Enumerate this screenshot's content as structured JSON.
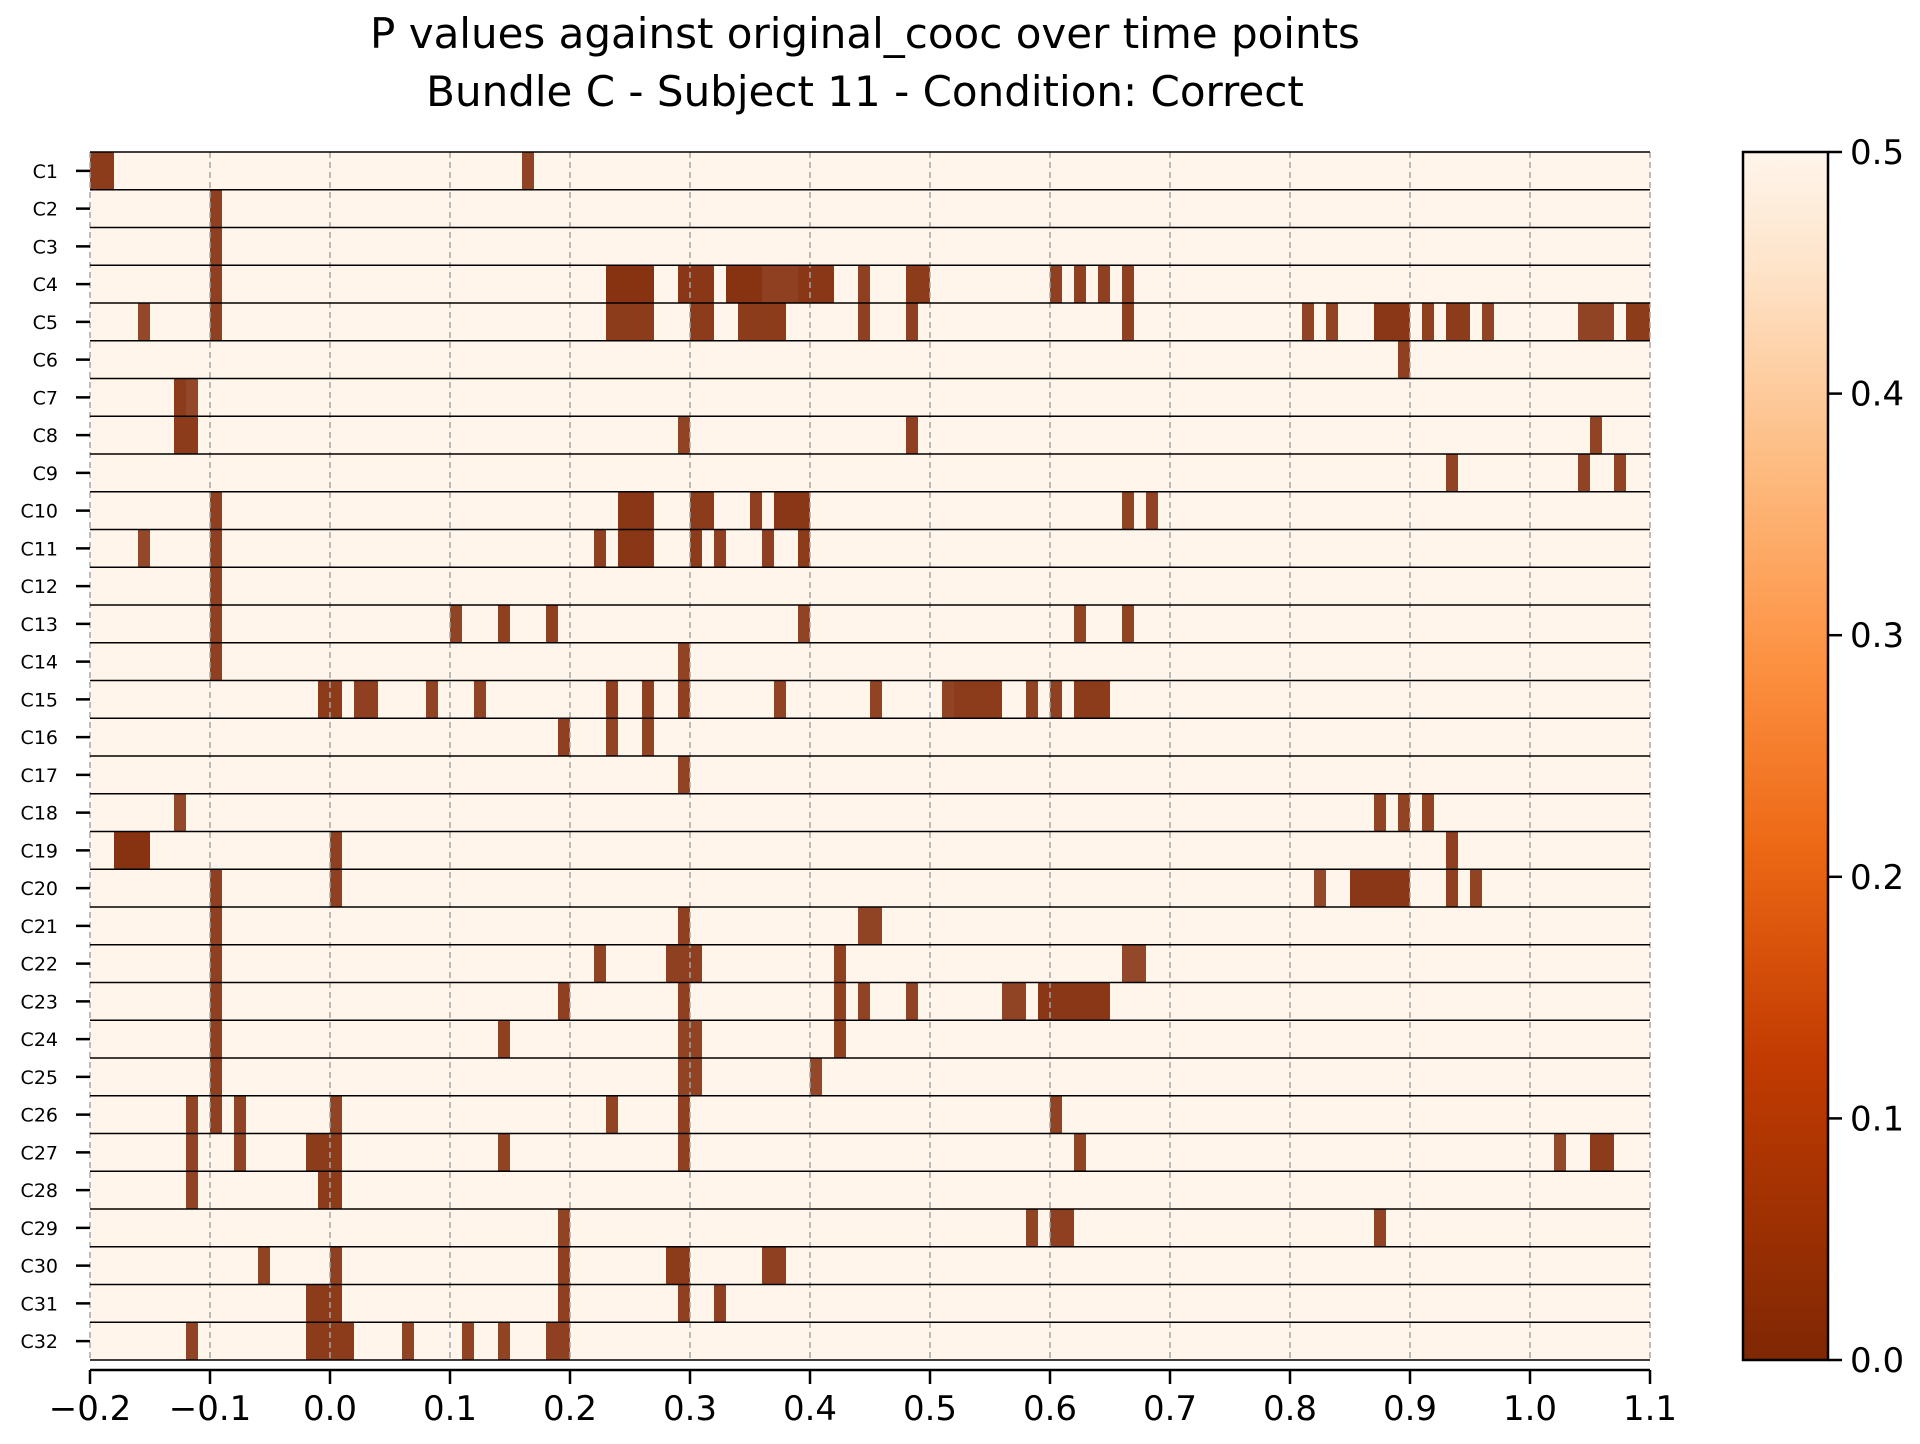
{
  "chart_data": {
    "type": "heatmap",
    "title": "P values against original_cooc over time points",
    "subtitle": "Bundle C - Subject 11 - Condition: Correct",
    "xlabel": "",
    "ylabel": "",
    "xlim": [
      -0.2,
      1.1
    ],
    "x_ticks": [
      -0.2,
      -0.1,
      0.0,
      0.1,
      0.2,
      0.3,
      0.4,
      0.5,
      0.6,
      0.7,
      0.8,
      0.9,
      1.0,
      1.1
    ],
    "x_tick_labels": [
      "−0.2",
      "−0.1",
      "0.0",
      "0.1",
      "0.2",
      "0.3",
      "0.4",
      "0.5",
      "0.6",
      "0.7",
      "0.8",
      "0.9",
      "1.0",
      "1.1"
    ],
    "time_step": 0.01,
    "grid": "vertical dashed",
    "colormap": "Oranges_r",
    "colors": {
      "low": "#7f2704",
      "high": "#fff5eb",
      "grid": "#a6a6a6"
    },
    "colorbar": {
      "range": [
        0.0,
        0.5
      ],
      "ticks": [
        0.0,
        0.1,
        0.2,
        0.3,
        0.4,
        0.5
      ],
      "tick_labels": [
        "0.0",
        "0.1",
        "0.2",
        "0.3",
        "0.4",
        "0.5"
      ]
    },
    "default_value": 0.5,
    "rows": [
      {
        "name": "C1",
        "low_p": [
          [
            -0.2,
            -0.18,
            0.05
          ],
          [
            0.16,
            0.17,
            0.07
          ]
        ]
      },
      {
        "name": "C2",
        "low_p": [
          [
            -0.1,
            -0.09,
            0.06
          ]
        ]
      },
      {
        "name": "C3",
        "low_p": [
          [
            -0.1,
            -0.09,
            0.06
          ]
        ]
      },
      {
        "name": "C4",
        "low_p": [
          [
            -0.1,
            -0.09,
            0.06
          ],
          [
            0.23,
            0.27,
            0.03
          ],
          [
            0.29,
            0.32,
            0.04
          ],
          [
            0.33,
            0.36,
            0.03
          ],
          [
            0.36,
            0.39,
            0.06
          ],
          [
            0.39,
            0.42,
            0.04
          ],
          [
            0.44,
            0.45,
            0.06
          ],
          [
            0.48,
            0.5,
            0.05
          ],
          [
            0.6,
            0.61,
            0.06
          ],
          [
            0.62,
            0.63,
            0.06
          ],
          [
            0.64,
            0.65,
            0.06
          ],
          [
            0.66,
            0.67,
            0.06
          ]
        ]
      },
      {
        "name": "C5",
        "low_p": [
          [
            -0.16,
            -0.15,
            0.08
          ],
          [
            -0.1,
            -0.09,
            0.06
          ],
          [
            0.23,
            0.27,
            0.05
          ],
          [
            0.3,
            0.32,
            0.05
          ],
          [
            0.34,
            0.38,
            0.05
          ],
          [
            0.44,
            0.45,
            0.06
          ],
          [
            0.48,
            0.49,
            0.06
          ],
          [
            0.66,
            0.67,
            0.06
          ],
          [
            0.81,
            0.82,
            0.07
          ],
          [
            0.83,
            0.84,
            0.07
          ],
          [
            0.87,
            0.9,
            0.04
          ],
          [
            0.91,
            0.92,
            0.06
          ],
          [
            0.93,
            0.95,
            0.05
          ],
          [
            0.96,
            0.97,
            0.07
          ],
          [
            1.04,
            1.07,
            0.07
          ],
          [
            1.08,
            1.1,
            0.05
          ]
        ]
      },
      {
        "name": "C6",
        "low_p": [
          [
            0.89,
            0.9,
            0.06
          ]
        ]
      },
      {
        "name": "C7",
        "low_p": [
          [
            -0.13,
            -0.12,
            0.05
          ],
          [
            -0.12,
            -0.11,
            0.08
          ]
        ]
      },
      {
        "name": "C8",
        "low_p": [
          [
            -0.13,
            -0.11,
            0.05
          ],
          [
            0.29,
            0.3,
            0.07
          ],
          [
            0.48,
            0.49,
            0.06
          ],
          [
            1.05,
            1.06,
            0.07
          ]
        ]
      },
      {
        "name": "C9",
        "low_p": [
          [
            0.93,
            0.94,
            0.07
          ],
          [
            1.04,
            1.05,
            0.07
          ],
          [
            1.07,
            1.08,
            0.07
          ]
        ]
      },
      {
        "name": "C10",
        "low_p": [
          [
            -0.1,
            -0.09,
            0.06
          ],
          [
            0.24,
            0.27,
            0.04
          ],
          [
            0.3,
            0.32,
            0.05
          ],
          [
            0.35,
            0.36,
            0.06
          ],
          [
            0.37,
            0.4,
            0.04
          ],
          [
            0.66,
            0.67,
            0.07
          ],
          [
            0.68,
            0.69,
            0.07
          ]
        ]
      },
      {
        "name": "C11",
        "low_p": [
          [
            -0.16,
            -0.15,
            0.08
          ],
          [
            -0.1,
            -0.09,
            0.06
          ],
          [
            0.22,
            0.23,
            0.06
          ],
          [
            0.24,
            0.27,
            0.04
          ],
          [
            0.3,
            0.31,
            0.05
          ],
          [
            0.32,
            0.33,
            0.06
          ],
          [
            0.36,
            0.37,
            0.06
          ],
          [
            0.39,
            0.4,
            0.05
          ]
        ]
      },
      {
        "name": "C12",
        "low_p": [
          [
            -0.1,
            -0.09,
            0.06
          ]
        ]
      },
      {
        "name": "C13",
        "low_p": [
          [
            -0.1,
            -0.09,
            0.06
          ],
          [
            0.1,
            0.11,
            0.07
          ],
          [
            0.14,
            0.15,
            0.06
          ],
          [
            0.18,
            0.19,
            0.06
          ],
          [
            0.39,
            0.4,
            0.07
          ],
          [
            0.62,
            0.63,
            0.07
          ],
          [
            0.66,
            0.67,
            0.07
          ]
        ]
      },
      {
        "name": "C14",
        "low_p": [
          [
            -0.1,
            -0.09,
            0.06
          ],
          [
            0.29,
            0.3,
            0.07
          ]
        ]
      },
      {
        "name": "C15",
        "low_p": [
          [
            -0.01,
            0.01,
            0.05
          ],
          [
            0.02,
            0.04,
            0.06
          ],
          [
            0.08,
            0.09,
            0.07
          ],
          [
            0.12,
            0.13,
            0.07
          ],
          [
            0.23,
            0.24,
            0.06
          ],
          [
            0.26,
            0.27,
            0.06
          ],
          [
            0.29,
            0.3,
            0.06
          ],
          [
            0.37,
            0.38,
            0.07
          ],
          [
            0.45,
            0.46,
            0.07
          ],
          [
            0.51,
            0.52,
            0.07
          ],
          [
            0.52,
            0.56,
            0.05
          ],
          [
            0.58,
            0.59,
            0.07
          ],
          [
            0.6,
            0.61,
            0.06
          ],
          [
            0.62,
            0.65,
            0.05
          ]
        ]
      },
      {
        "name": "C16",
        "low_p": [
          [
            0.19,
            0.2,
            0.06
          ],
          [
            0.23,
            0.24,
            0.07
          ],
          [
            0.26,
            0.27,
            0.07
          ]
        ]
      },
      {
        "name": "C17",
        "low_p": [
          [
            0.29,
            0.3,
            0.07
          ]
        ]
      },
      {
        "name": "C18",
        "low_p": [
          [
            -0.13,
            -0.12,
            0.08
          ],
          [
            0.87,
            0.88,
            0.07
          ],
          [
            0.89,
            0.9,
            0.07
          ],
          [
            0.91,
            0.92,
            0.07
          ]
        ]
      },
      {
        "name": "C19",
        "low_p": [
          [
            -0.18,
            -0.15,
            0.03
          ],
          [
            0.0,
            0.01,
            0.06
          ],
          [
            0.93,
            0.94,
            0.06
          ]
        ]
      },
      {
        "name": "C20",
        "low_p": [
          [
            -0.1,
            -0.09,
            0.06
          ],
          [
            0.0,
            0.01,
            0.06
          ],
          [
            0.82,
            0.83,
            0.08
          ],
          [
            0.85,
            0.9,
            0.04
          ],
          [
            0.93,
            0.94,
            0.06
          ],
          [
            0.95,
            0.96,
            0.07
          ]
        ]
      },
      {
        "name": "C21",
        "low_p": [
          [
            -0.1,
            -0.09,
            0.06
          ],
          [
            0.29,
            0.3,
            0.06
          ],
          [
            0.44,
            0.46,
            0.07
          ]
        ]
      },
      {
        "name": "C22",
        "low_p": [
          [
            -0.1,
            -0.09,
            0.06
          ],
          [
            0.22,
            0.23,
            0.07
          ],
          [
            0.28,
            0.31,
            0.06
          ],
          [
            0.42,
            0.43,
            0.06
          ],
          [
            0.66,
            0.68,
            0.08
          ]
        ]
      },
      {
        "name": "C23",
        "low_p": [
          [
            -0.1,
            -0.09,
            0.06
          ],
          [
            0.19,
            0.2,
            0.06
          ],
          [
            0.29,
            0.3,
            0.06
          ],
          [
            0.42,
            0.43,
            0.06
          ],
          [
            0.44,
            0.45,
            0.07
          ],
          [
            0.48,
            0.49,
            0.07
          ],
          [
            0.56,
            0.58,
            0.07
          ],
          [
            0.59,
            0.65,
            0.04
          ]
        ]
      },
      {
        "name": "C24",
        "low_p": [
          [
            -0.1,
            -0.09,
            0.06
          ],
          [
            0.14,
            0.15,
            0.06
          ],
          [
            0.29,
            0.31,
            0.07
          ],
          [
            0.42,
            0.43,
            0.06
          ]
        ]
      },
      {
        "name": "C25",
        "low_p": [
          [
            -0.1,
            -0.09,
            0.06
          ],
          [
            0.29,
            0.31,
            0.07
          ],
          [
            0.4,
            0.41,
            0.08
          ]
        ]
      },
      {
        "name": "C26",
        "low_p": [
          [
            -0.12,
            -0.11,
            0.07
          ],
          [
            -0.1,
            -0.09,
            0.06
          ],
          [
            -0.08,
            -0.07,
            0.07
          ],
          [
            0.0,
            0.01,
            0.07
          ],
          [
            0.23,
            0.24,
            0.07
          ],
          [
            0.29,
            0.3,
            0.06
          ],
          [
            0.6,
            0.61,
            0.07
          ]
        ]
      },
      {
        "name": "C27",
        "low_p": [
          [
            -0.12,
            -0.11,
            0.07
          ],
          [
            -0.08,
            -0.07,
            0.07
          ],
          [
            -0.02,
            0.01,
            0.05
          ],
          [
            0.14,
            0.15,
            0.07
          ],
          [
            0.29,
            0.3,
            0.06
          ],
          [
            0.62,
            0.63,
            0.07
          ],
          [
            1.02,
            1.03,
            0.08
          ],
          [
            1.05,
            1.07,
            0.05
          ]
        ]
      },
      {
        "name": "C28",
        "low_p": [
          [
            -0.12,
            -0.11,
            0.07
          ],
          [
            -0.01,
            0.01,
            0.05
          ]
        ]
      },
      {
        "name": "C29",
        "low_p": [
          [
            0.19,
            0.2,
            0.07
          ],
          [
            0.58,
            0.59,
            0.07
          ],
          [
            0.6,
            0.62,
            0.06
          ],
          [
            0.87,
            0.88,
            0.07
          ]
        ]
      },
      {
        "name": "C30",
        "low_p": [
          [
            -0.06,
            -0.05,
            0.07
          ],
          [
            0.0,
            0.01,
            0.06
          ],
          [
            0.19,
            0.2,
            0.06
          ],
          [
            0.28,
            0.3,
            0.05
          ],
          [
            0.36,
            0.38,
            0.06
          ]
        ]
      },
      {
        "name": "C31",
        "low_p": [
          [
            -0.02,
            0.01,
            0.05
          ],
          [
            0.19,
            0.2,
            0.06
          ],
          [
            0.29,
            0.3,
            0.06
          ],
          [
            0.32,
            0.33,
            0.06
          ]
        ]
      },
      {
        "name": "C32",
        "low_p": [
          [
            -0.12,
            -0.11,
            0.07
          ],
          [
            -0.02,
            0.02,
            0.05
          ],
          [
            0.06,
            0.07,
            0.07
          ],
          [
            0.11,
            0.12,
            0.07
          ],
          [
            0.14,
            0.15,
            0.07
          ],
          [
            0.18,
            0.2,
            0.06
          ]
        ]
      }
    ]
  }
}
